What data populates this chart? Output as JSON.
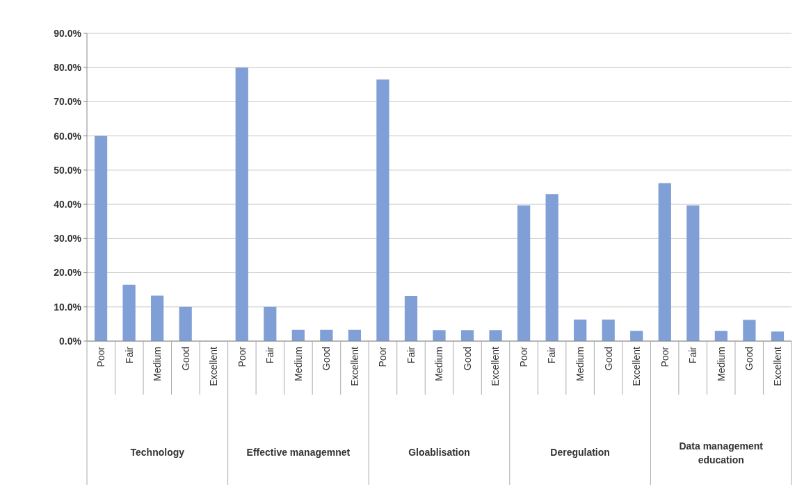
{
  "chart_data": {
    "type": "bar",
    "categories": [
      "Poor",
      "Fair",
      "Medium",
      "Good",
      "Excellent",
      "Poor",
      "Fair",
      "Medium",
      "Good",
      "Excellent",
      "Poor",
      "Fair",
      "Medium",
      "Good",
      "Excellent",
      "Poor",
      "Fair",
      "Medium",
      "Good",
      "Excellent",
      "Poor",
      "Fair",
      "Medium",
      "Good",
      "Excellent"
    ],
    "series": [
      {
        "color": "#7f9fd6",
        "values": [
          60,
          16.5,
          13.3,
          10,
          0,
          80,
          10,
          3.3,
          3.3,
          3.3,
          76.5,
          13.2,
          3.2,
          3.2,
          3.2,
          39.7,
          43,
          6.3,
          6.3,
          3,
          46.2,
          39.7,
          3,
          6.2,
          2.8
        ]
      }
    ],
    "annotations": [
      "Technology",
      "Effective managemnet",
      "Gloablisation",
      "Deregulation",
      "Data management education"
    ],
    "ylim": [
      0,
      90
    ],
    "yticks": [
      {
        "value": 0,
        "label": "0.0%"
      },
      {
        "value": 10,
        "label": "10.0%"
      },
      {
        "value": 20,
        "label": "20.0%"
      },
      {
        "value": 30,
        "label": "30.0%"
      },
      {
        "value": 40,
        "label": "40.0%"
      },
      {
        "value": 50,
        "label": "50.0%"
      },
      {
        "value": 60,
        "label": "60.0%"
      },
      {
        "value": 70,
        "label": "70.0%"
      },
      {
        "value": 80,
        "label": "80.0%"
      },
      {
        "value": 90,
        "label": "90.0%"
      }
    ],
    "grid": "y"
  }
}
